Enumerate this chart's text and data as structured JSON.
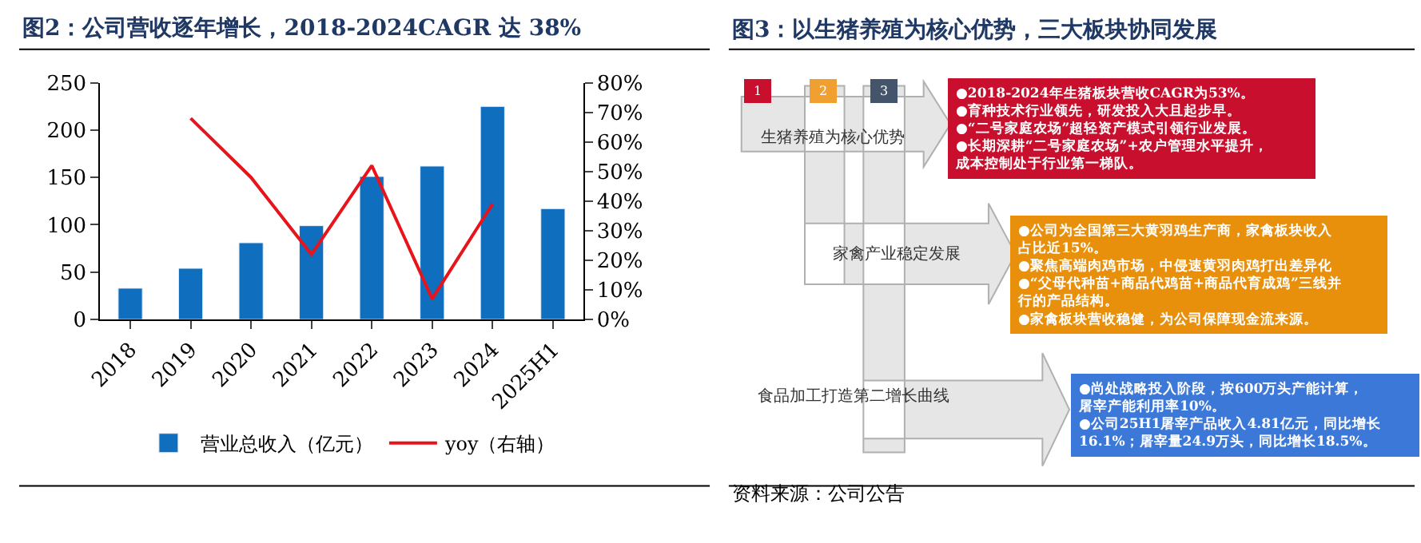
{
  "chart_data": [
    {
      "type": "bar",
      "title": "图2：公司营收逐年增长，2018-2024CAGR 达 38%",
      "categories": [
        "2018",
        "2019",
        "2020",
        "2021",
        "2022",
        "2023",
        "2024",
        "2025H1"
      ],
      "series": [
        {
          "name": "营业总收入（亿元）",
          "type": "bar",
          "color": "#0f6ebe",
          "values": [
            33,
            54,
            81,
            99,
            151,
            162,
            225,
            117
          ]
        },
        {
          "name": "yoy（右轴）",
          "type": "line",
          "axis": "y2",
          "color": "#e8141b",
          "values": [
            null,
            68,
            48,
            22,
            52,
            7,
            39,
            null
          ]
        }
      ],
      "ylim": [
        0,
        250
      ],
      "yticks": [
        0,
        50,
        100,
        150,
        200,
        250
      ],
      "y2lim": [
        0,
        80
      ],
      "y2ticks": [
        {
          "value": 0,
          "label": "0%"
        },
        {
          "value": 10,
          "label": "10%"
        },
        {
          "value": 20,
          "label": "20%"
        },
        {
          "value": 30,
          "label": "30%"
        },
        {
          "value": 40,
          "label": "40%"
        },
        {
          "value": 50,
          "label": "50%"
        },
        {
          "value": 60,
          "label": "60%"
        },
        {
          "value": 70,
          "label": "70%"
        },
        {
          "value": 80,
          "label": "80%"
        }
      ],
      "legend": "bottom",
      "marker": "none",
      "line_style": "solid"
    },
    {
      "type": "other",
      "title": "图3：以生猪养殖为核心优势，三大板块协同发展",
      "annotations": [
        "1",
        "2",
        "3",
        "生猪养殖为核心优势",
        "家禽产业稳定发展",
        "食品加工打造第二增长曲线",
        "●2018-2024年生猪板块营收CAGR为53%。\n●育种技术行业领先，研发投入大且起步早。\n●“二号家庭农场”超轻资产模式引领行业发展。\n●长期深耕“二号家庭农场”+农户管理水平提升，成本控制处于行业第一梯队。",
        "●公司为全国第三大黄羽鸡生产商，家禽板块收入占比近15%。\n●聚焦高端肉鸡市场，中侵速黄羽肉鸡打出差异化\n●“父母代种苗+商品代鸡苗+商品代育成鸡”三线并行的产品结构。\n●家禽板块营收稳健，为公司保障现金流来源。",
        "●尚处战略投入阶段，按600万头产能计算，屠宰产能利用率10%。\n●公司25H1屠宰产品收入4.81亿元，同比增长16.1%；屠宰量24.9万头，同比增长18.5%。",
        "资料来源：公司公告"
      ]
    }
  ]
}
